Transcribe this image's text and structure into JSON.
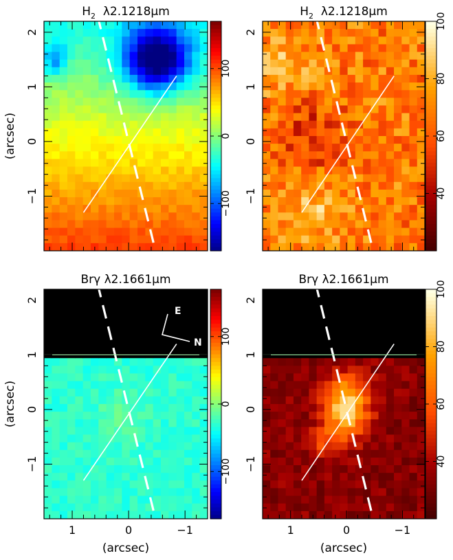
{
  "chart_data": [
    {
      "type": "heatmap",
      "title": "H2 λ2.1218μm",
      "title_species": "H",
      "title_sub": "2",
      "title_line": "λ2.1218μm",
      "quantity": "velocity",
      "colormap": "jet",
      "xlim": [
        1.5,
        -1.4
      ],
      "ylim": [
        -2.0,
        2.2
      ],
      "x_ticks": [
        "1",
        "0",
        "−1"
      ],
      "y_ticks": [
        "−1",
        "0",
        "1",
        "2"
      ],
      "ylabel": "(arcsec)",
      "xlabel": "",
      "colorbar": {
        "range": [
          -170,
          170
        ],
        "ticks": [
          "−100",
          "0",
          "100"
        ],
        "tick_values": [
          -100,
          0,
          100
        ]
      },
      "overlay_lines": {
        "solid": [
          [
            0.8,
            -1.3
          ],
          [
            -0.85,
            1.2
          ]
        ],
        "dashed": [
          [
            0.55,
            2.3
          ],
          [
            -0.5,
            -2.1
          ]
        ]
      }
    },
    {
      "type": "heatmap",
      "title": "H2 λ2.1218μm",
      "title_species": "H",
      "title_sub": "2",
      "title_line": "λ2.1218μm",
      "quantity": "velocity dispersion",
      "colormap": "heat",
      "xlim": [
        1.5,
        -1.4
      ],
      "ylim": [
        -2.0,
        2.2
      ],
      "x_ticks": [
        "1",
        "0",
        "−1"
      ],
      "y_ticks": [
        "−1",
        "0",
        "1",
        "2"
      ],
      "xlabel": "",
      "ylabel": "",
      "colorbar": {
        "range": [
          20,
          100
        ],
        "ticks": [
          "40",
          "60",
          "80",
          "100"
        ],
        "tick_values": [
          40,
          60,
          80,
          100
        ]
      },
      "overlay_lines": {
        "solid": [
          [
            0.8,
            -1.3
          ],
          [
            -0.85,
            1.2
          ]
        ],
        "dashed": [
          [
            0.55,
            2.3
          ],
          [
            -0.5,
            -2.1
          ]
        ]
      }
    },
    {
      "type": "heatmap",
      "title": "Brγ λ2.1661μm",
      "title_species": "Brγ",
      "title_sub": "",
      "title_line": "λ2.1661μm",
      "quantity": "velocity",
      "colormap": "jet",
      "xlim": [
        1.5,
        -1.4
      ],
      "ylim": [
        -2.0,
        2.2
      ],
      "x_ticks": [
        "1",
        "0",
        "−1"
      ],
      "y_ticks": [
        "−1",
        "0",
        "1",
        "2"
      ],
      "xlabel": "(arcsec)",
      "ylabel": "(arcsec)",
      "masked_above_y": 1.0,
      "colorbar": {
        "range": [
          -170,
          170
        ],
        "ticks": [
          "−100",
          "0",
          "100"
        ],
        "tick_values": [
          -100,
          0,
          100
        ]
      },
      "compass": {
        "east_label": "E",
        "north_label": "N"
      },
      "overlay_lines": {
        "solid": [
          [
            0.8,
            -1.3
          ],
          [
            -0.85,
            1.2
          ]
        ],
        "dashed": [
          [
            0.55,
            2.3
          ],
          [
            -0.5,
            -2.1
          ]
        ]
      }
    },
    {
      "type": "heatmap",
      "title": "Brγ λ2.1661μm",
      "title_species": "Brγ",
      "title_sub": "",
      "title_line": "λ2.1661μm",
      "quantity": "velocity dispersion",
      "colormap": "heat",
      "xlim": [
        1.5,
        -1.4
      ],
      "ylim": [
        -2.0,
        2.2
      ],
      "x_ticks": [
        "1",
        "0",
        "−1"
      ],
      "y_ticks": [
        "−1",
        "0",
        "1",
        "2"
      ],
      "xlabel": "(arcsec)",
      "ylabel": "",
      "masked_above_y": 1.0,
      "colorbar": {
        "range": [
          20,
          100
        ],
        "ticks": [
          "40",
          "60",
          "80",
          "100"
        ],
        "tick_values": [
          40,
          60,
          80,
          100
        ]
      },
      "overlay_lines": {
        "solid": [
          [
            0.8,
            -1.3
          ],
          [
            -0.85,
            1.2
          ]
        ],
        "dashed": [
          [
            0.55,
            2.3
          ],
          [
            -0.5,
            -2.1
          ]
        ]
      }
    }
  ]
}
